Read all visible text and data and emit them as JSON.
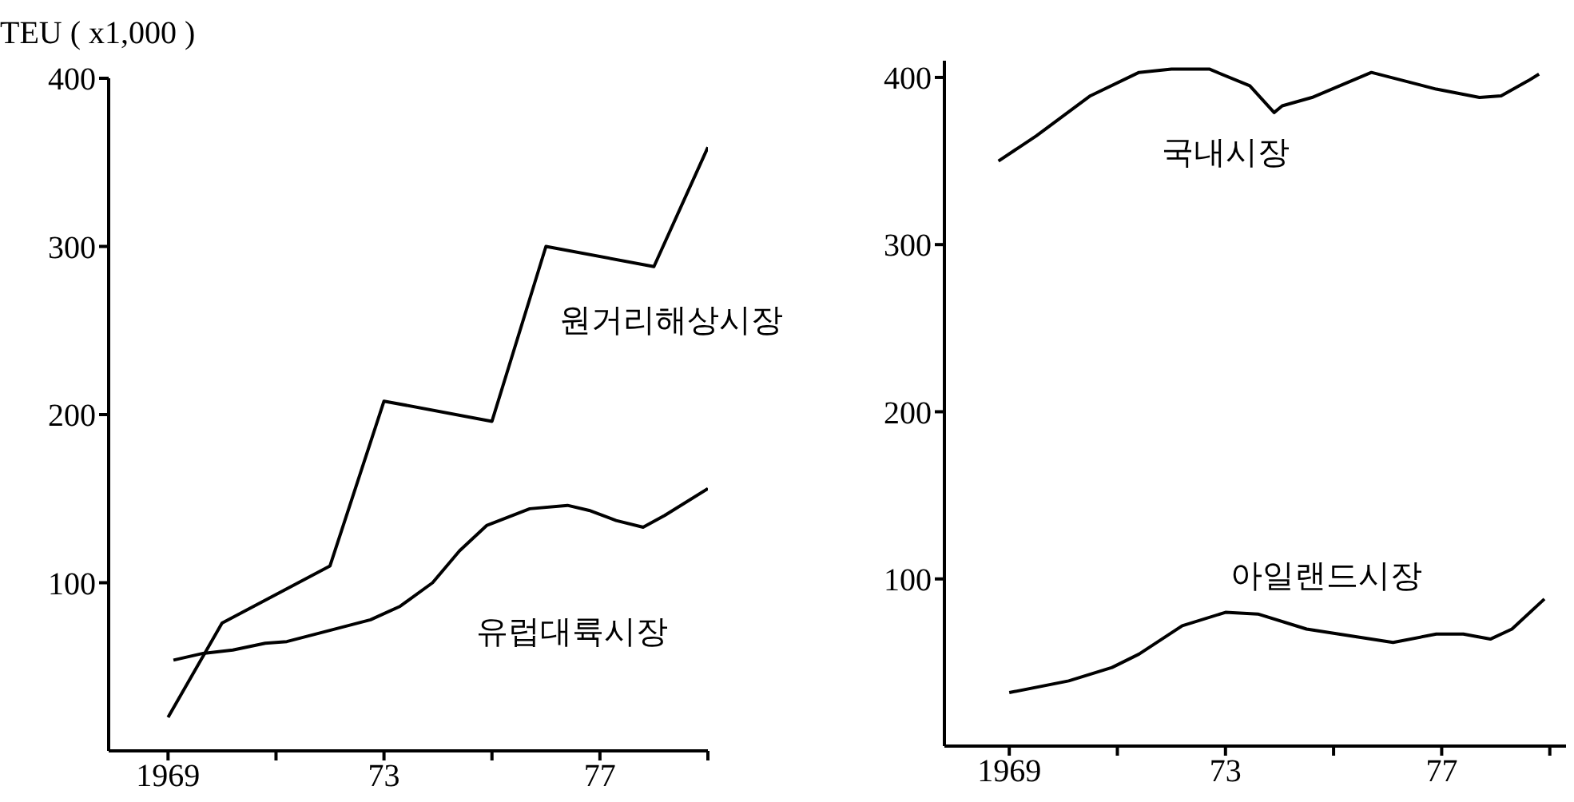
{
  "chart_data": [
    {
      "type": "line",
      "ylabel": "TEU ( x1,000 )",
      "xlim": [
        1967.9,
        1979
      ],
      "xticks": [
        {
          "value": 1969,
          "label": "1969"
        },
        {
          "value": 1971,
          "label": null
        },
        {
          "value": 1973,
          "label": "73"
        },
        {
          "value": 1975,
          "label": null
        },
        {
          "value": 1977,
          "label": "77"
        },
        {
          "value": 1979,
          "label": null
        }
      ],
      "ylim": [
        0,
        400
      ],
      "yticks": [
        100,
        200,
        300,
        400
      ],
      "grid": false,
      "legend": false,
      "marker": "none",
      "line_style": "solid",
      "series": [
        {
          "color": "#000000",
          "x": [
            1969,
            1970,
            1972,
            1973,
            1975,
            1976,
            1978,
            1979
          ],
          "values": [
            20,
            76,
            110,
            208,
            196,
            300,
            288,
            359
          ]
        },
        {
          "color": "#000000",
          "x": [
            1969.1,
            1969.65,
            1970.2,
            1970.8,
            1971.2,
            1971.8,
            1972.75,
            1973.3,
            1973.9,
            1974.4,
            1974.9,
            1975.7,
            1976.4,
            1976.8,
            1977.3,
            1977.8,
            1978.2,
            1979
          ],
          "values": [
            54,
            58,
            60,
            64,
            65,
            70,
            78,
            86,
            100,
            119,
            134,
            144,
            146,
            143,
            137,
            133,
            140,
            156
          ]
        }
      ],
      "annotations": [
        "원거리해상시장",
        "유럽대륙시장"
      ]
    },
    {
      "type": "line",
      "xlim": [
        1967.8,
        1979.3
      ],
      "xticks": [
        {
          "value": 1969,
          "label": "1969"
        },
        {
          "value": 1971,
          "label": null
        },
        {
          "value": 1973,
          "label": "73"
        },
        {
          "value": 1975,
          "label": null
        },
        {
          "value": 1977,
          "label": "77"
        },
        {
          "value": 1979,
          "label": null
        }
      ],
      "ylim": [
        0,
        410
      ],
      "yticks": [
        100,
        200,
        300,
        400
      ],
      "grid": false,
      "legend": false,
      "marker": "none",
      "line_style": "solid",
      "series": [
        {
          "color": "#000000",
          "x": [
            1968.8,
            1969.5,
            1970.5,
            1971.4,
            1972.0,
            1972.7,
            1973.45,
            1973.9,
            1974.05,
            1974.6,
            1975.7,
            1976.9,
            1977.7,
            1978.1,
            1978.6,
            1978.8
          ],
          "values": [
            350,
            365,
            389,
            403,
            405,
            405,
            395,
            379,
            383,
            388,
            403,
            393,
            388,
            389,
            398,
            402
          ]
        },
        {
          "color": "#000000",
          "x": [
            1969.0,
            1970.1,
            1970.9,
            1971.4,
            1972.2,
            1973.0,
            1973.6,
            1974.5,
            1976.1,
            1976.9,
            1977.4,
            1977.9,
            1978.3,
            1978.9
          ],
          "values": [
            32,
            39,
            47,
            55,
            72,
            80,
            79,
            70,
            62,
            67,
            67,
            64,
            70,
            88
          ]
        }
      ],
      "annotations": [
        "국내시장",
        "아일랜드시장"
      ]
    }
  ]
}
